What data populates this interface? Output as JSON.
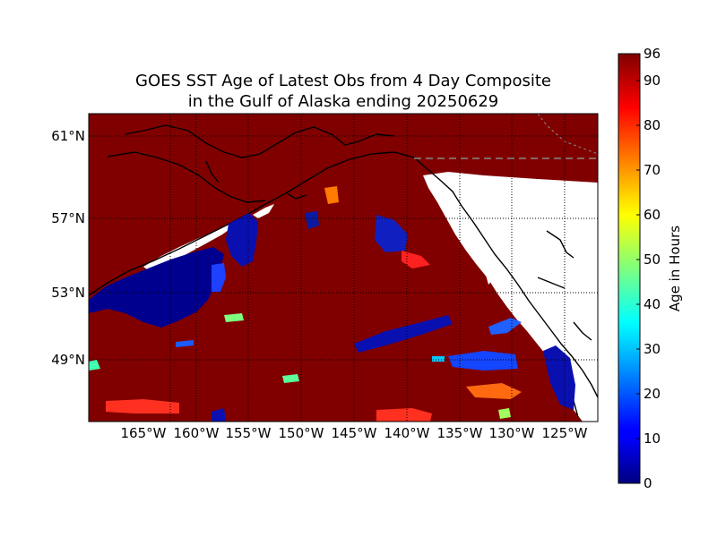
{
  "title": {
    "line1": "GOES SST Age of Latest Obs from 4 Day Composite",
    "line2": "in the Gulf of Alaska ending 20250629"
  },
  "map": {
    "lat_labels": [
      "61°N",
      "57°N",
      "53°N",
      "49°N"
    ],
    "lon_labels": [
      "165°W",
      "160°W",
      "155°W",
      "150°W",
      "145°W",
      "140°W",
      "135°W",
      "130°W",
      "125°W"
    ],
    "lat_values": [
      61,
      57,
      53,
      49
    ],
    "lon_values": [
      -165,
      -160,
      -155,
      -150,
      -145,
      -140,
      -135,
      -130,
      -125
    ],
    "background_color": "#800000",
    "land_color": "#ffffff"
  },
  "colorbar": {
    "label": "Age in Hours",
    "min": 0,
    "max": 96,
    "ticks": [
      "0",
      "10",
      "20",
      "30",
      "40",
      "50",
      "60",
      "70",
      "80",
      "90",
      "96"
    ],
    "tick_values": [
      0,
      10,
      20,
      30,
      40,
      50,
      60,
      70,
      80,
      90,
      96
    ],
    "colormap": "jet"
  }
}
